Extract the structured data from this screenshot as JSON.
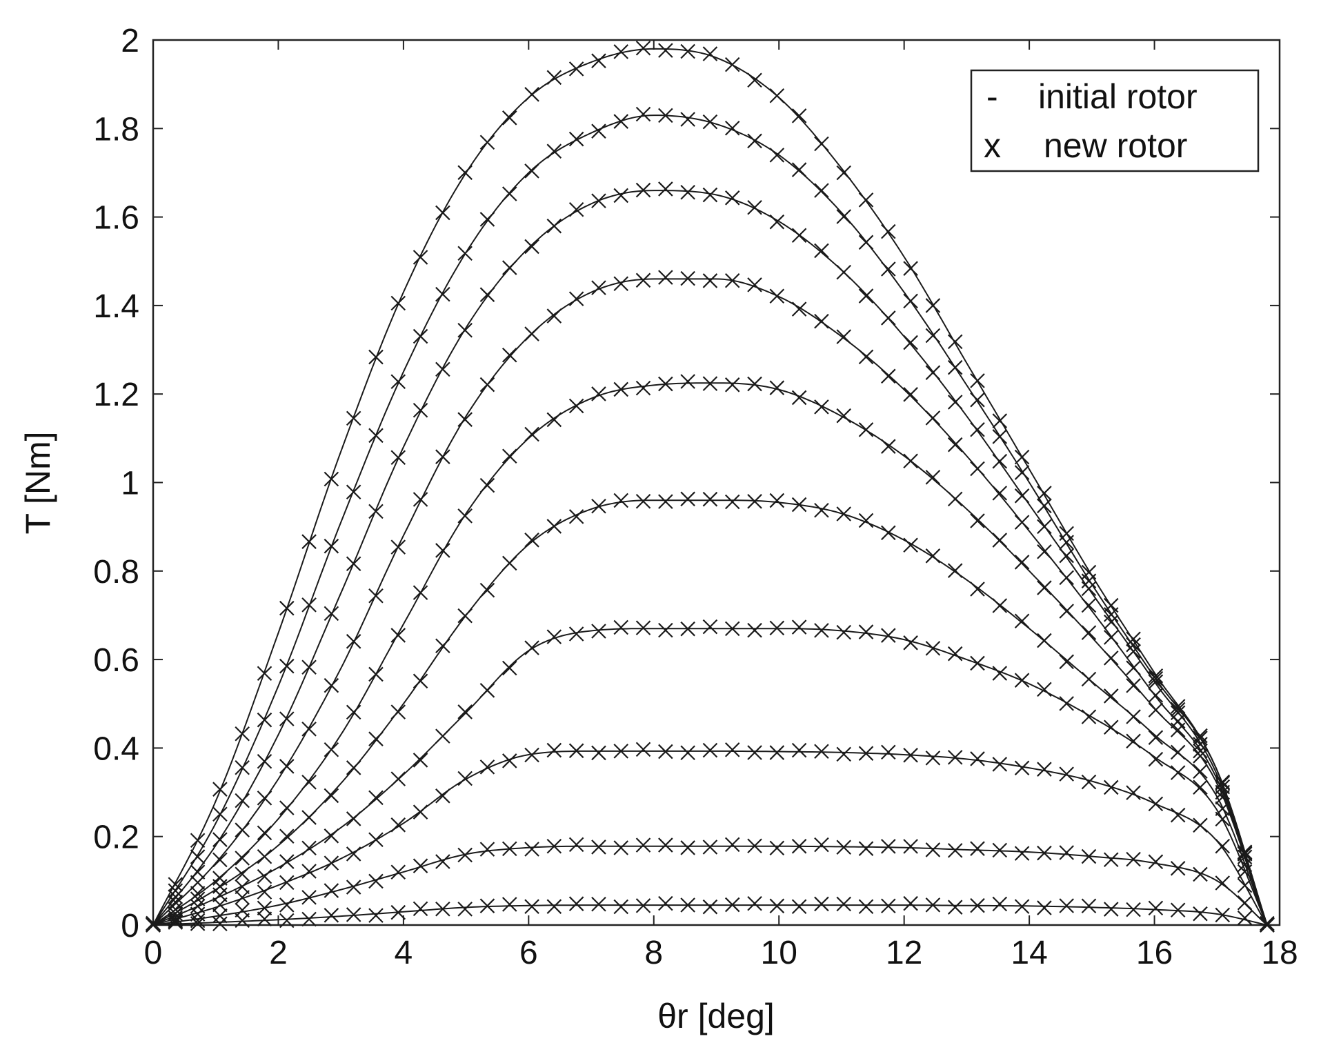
{
  "chart_data": {
    "type": "line",
    "title": "",
    "xlabel": "θr  [deg]",
    "ylabel": "T [Nm]",
    "xlim": [
      0,
      18
    ],
    "ylim": [
      0,
      2
    ],
    "xticks": [
      "0",
      "2",
      "4",
      "6",
      "8",
      "10",
      "12",
      "14",
      "16",
      "18"
    ],
    "yticks": [
      "0",
      "0.2",
      "0.4",
      "0.6",
      "0.8",
      "1",
      "1.2",
      "1.4",
      "1.6",
      "1.8",
      "2"
    ],
    "grid": false,
    "legend": {
      "position": "top-right",
      "entries": [
        {
          "symbol": "-",
          "label": "initial rotor"
        },
        {
          "symbol": "x",
          "label": "new rotor"
        }
      ]
    },
    "colors": {
      "line": "#1a1a1a",
      "marker": "#1a1a1a",
      "axes": "#222222"
    },
    "x": [
      0,
      1,
      2,
      3,
      4,
      5,
      6,
      7,
      8,
      9,
      10,
      11,
      12,
      13,
      14,
      15,
      16,
      17,
      17.8
    ],
    "series": [
      {
        "values": [
          0,
          0.006,
          0.012,
          0.02,
          0.03,
          0.04,
          0.044,
          0.045,
          0.045,
          0.045,
          0.045,
          0.045,
          0.045,
          0.044,
          0.043,
          0.04,
          0.035,
          0.025,
          0
        ]
      },
      {
        "values": [
          0,
          0.02,
          0.045,
          0.08,
          0.12,
          0.16,
          0.175,
          0.178,
          0.178,
          0.178,
          0.178,
          0.177,
          0.175,
          0.17,
          0.165,
          0.155,
          0.14,
          0.1,
          0
        ]
      },
      {
        "values": [
          0,
          0.04,
          0.09,
          0.15,
          0.23,
          0.33,
          0.385,
          0.393,
          0.393,
          0.393,
          0.392,
          0.39,
          0.385,
          0.375,
          0.355,
          0.325,
          0.275,
          0.19,
          0
        ]
      },
      {
        "values": [
          0,
          0.06,
          0.13,
          0.22,
          0.34,
          0.48,
          0.62,
          0.665,
          0.67,
          0.67,
          0.67,
          0.665,
          0.645,
          0.6,
          0.545,
          0.47,
          0.38,
          0.26,
          0
        ]
      },
      {
        "values": [
          0,
          0.08,
          0.18,
          0.32,
          0.5,
          0.7,
          0.86,
          0.94,
          0.96,
          0.96,
          0.955,
          0.93,
          0.87,
          0.78,
          0.67,
          0.55,
          0.43,
          0.29,
          0
        ]
      },
      {
        "values": [
          0,
          0.1,
          0.24,
          0.43,
          0.68,
          0.93,
          1.1,
          1.19,
          1.22,
          1.225,
          1.21,
          1.15,
          1.06,
          0.94,
          0.8,
          0.65,
          0.49,
          0.32,
          0
        ]
      },
      {
        "values": [
          0,
          0.14,
          0.33,
          0.58,
          0.88,
          1.15,
          1.33,
          1.43,
          1.46,
          1.46,
          1.42,
          1.33,
          1.21,
          1.06,
          0.89,
          0.71,
          0.52,
          0.33,
          0
        ]
      },
      {
        "values": [
          0,
          0.18,
          0.43,
          0.75,
          1.08,
          1.35,
          1.53,
          1.63,
          1.66,
          1.65,
          1.59,
          1.48,
          1.33,
          1.15,
          0.95,
          0.75,
          0.55,
          0.34,
          0
        ]
      },
      {
        "values": [
          0,
          0.23,
          0.54,
          0.91,
          1.25,
          1.52,
          1.7,
          1.79,
          1.83,
          1.81,
          1.74,
          1.61,
          1.43,
          1.22,
          1.0,
          0.77,
          0.56,
          0.35,
          0
        ]
      },
      {
        "values": [
          0,
          0.28,
          0.66,
          1.07,
          1.43,
          1.7,
          1.87,
          1.95,
          1.98,
          1.96,
          1.87,
          1.71,
          1.51,
          1.27,
          1.03,
          0.79,
          0.57,
          0.35,
          0
        ]
      }
    ]
  }
}
